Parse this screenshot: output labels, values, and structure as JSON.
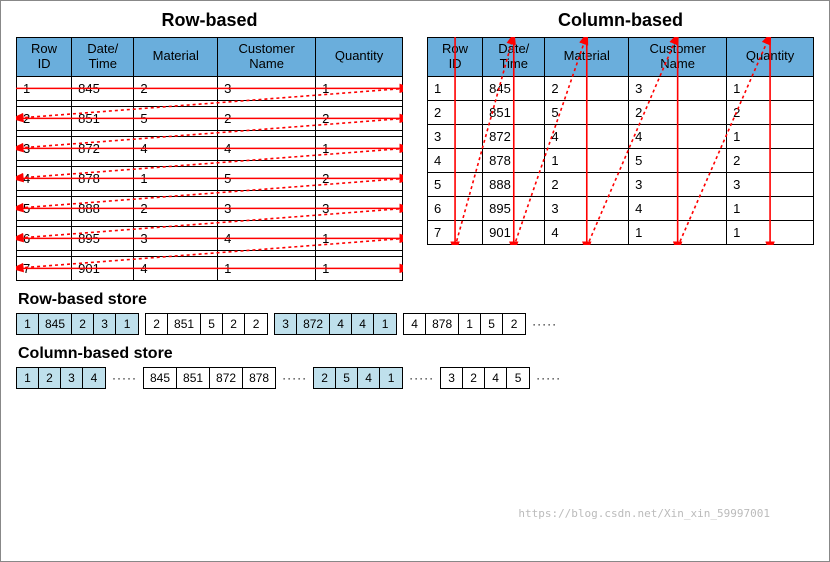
{
  "colors": {
    "header_bg": "#6aaedc",
    "shade_bg": "#bfe0ec",
    "line_solid": "#ff0000",
    "line_dotted": "#ff0000",
    "border": "#000000",
    "bg": "#ffffff"
  },
  "titles": {
    "row": "Row-based",
    "col": "Column-based",
    "row_store": "Row-based store",
    "col_store": "Column-based store"
  },
  "headers": [
    "Row\nID",
    "Date/\nTime",
    "Material",
    "Customer\nName",
    "Quantity"
  ],
  "rows": [
    [
      "1",
      "845",
      "2",
      "3",
      "1"
    ],
    [
      "2",
      "851",
      "5",
      "2",
      "2"
    ],
    [
      "3",
      "872",
      "4",
      "4",
      "1"
    ],
    [
      "4",
      "878",
      "1",
      "5",
      "2"
    ],
    [
      "5",
      "888",
      "2",
      "3",
      "3"
    ],
    [
      "6",
      "895",
      "3",
      "4",
      "1"
    ],
    [
      "7",
      "901",
      "4",
      "1",
      "1"
    ]
  ],
  "row_store": {
    "groups": [
      {
        "cells": [
          "1",
          "845",
          "2",
          "3",
          "1"
        ],
        "shaded": true
      },
      {
        "cells": [
          "2",
          "851",
          "5",
          "2",
          "2"
        ],
        "shaded": false
      },
      {
        "cells": [
          "3",
          "872",
          "4",
          "4",
          "1"
        ],
        "shaded": true
      },
      {
        "cells": [
          "4",
          "878",
          "1",
          "5",
          "2"
        ],
        "shaded": false
      }
    ],
    "trailing_dots": true
  },
  "col_store": {
    "groups": [
      {
        "cells": [
          "1",
          "2",
          "3",
          "4"
        ],
        "shaded": true,
        "dots": true
      },
      {
        "cells": [
          "845",
          "851",
          "872",
          "878"
        ],
        "shaded": false,
        "dots": true
      },
      {
        "cells": [
          "2",
          "5",
          "4",
          "1"
        ],
        "shaded": true,
        "dots": true
      },
      {
        "cells": [
          "3",
          "2",
          "4",
          "5"
        ],
        "shaded": false,
        "dots": true
      }
    ]
  },
  "watermark": "https://blog.csdn.net/Xin_xin_59997001"
}
